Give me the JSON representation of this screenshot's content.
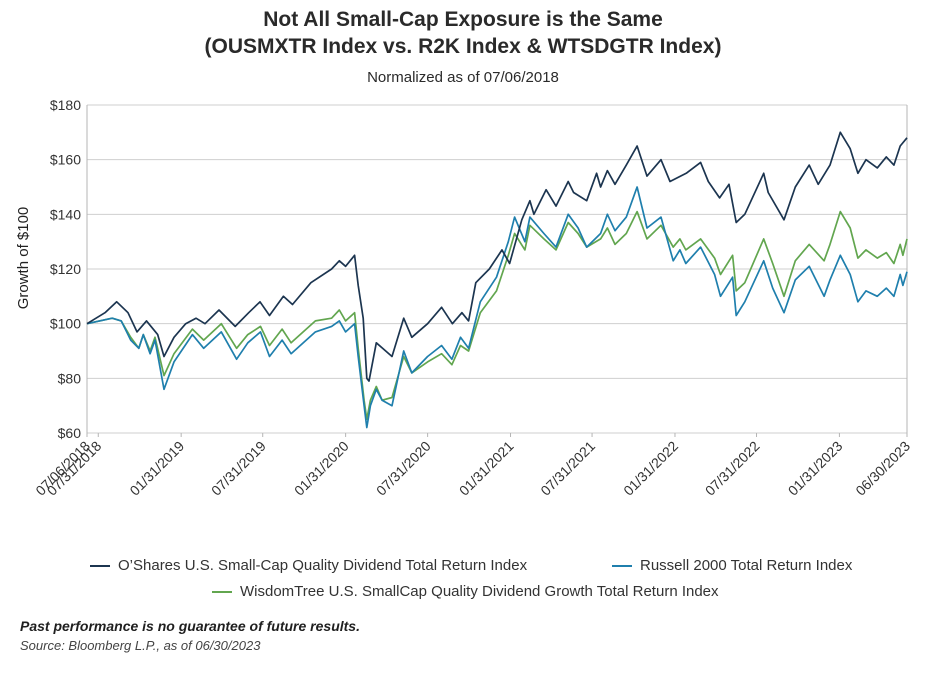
{
  "title_line1": "Not All Small-Cap Exposure is the Same",
  "title_line2": "(OUSMXTR Index vs. R2K Index & WTSDGTR Index)",
  "subtitle": "Normalized as of 07/06/2018",
  "disclaimer": "Past performance is no guarantee of future results.",
  "source": "Source: Bloomberg L.P., as of 06/30/2023",
  "colors": {
    "ousmxtr": "#1c3550",
    "r2k": "#1f7fad",
    "wtsdgtr": "#62a64f",
    "grid": "#cfcfcf",
    "axis": "#b5b5b5"
  },
  "chart_data": {
    "type": "line",
    "xlabel": "",
    "ylabel": "Growth of $100",
    "ylim": [
      60,
      180
    ],
    "xlim": [
      "2018-07-06",
      "2023-06-30"
    ],
    "yticks": [
      "$60",
      "$80",
      "$100",
      "$120",
      "$140",
      "$160",
      "$180"
    ],
    "ytick_values": [
      60,
      80,
      100,
      120,
      140,
      160,
      180
    ],
    "xticks": [
      {
        "date": "2018-07-06",
        "label": "07/06/2018"
      },
      {
        "date": "2018-07-31",
        "label": "07/31/2018"
      },
      {
        "date": "2019-01-31",
        "label": "01/31/2019"
      },
      {
        "date": "2019-07-31",
        "label": "07/31/2019"
      },
      {
        "date": "2020-01-31",
        "label": "01/31/2020"
      },
      {
        "date": "2020-07-31",
        "label": "07/31/2020"
      },
      {
        "date": "2021-01-31",
        "label": "01/31/2021"
      },
      {
        "date": "2021-07-31",
        "label": "07/31/2021"
      },
      {
        "date": "2022-01-31",
        "label": "01/31/2022"
      },
      {
        "date": "2022-07-31",
        "label": "07/31/2022"
      },
      {
        "date": "2023-01-31",
        "label": "01/31/2023"
      },
      {
        "date": "2023-06-30",
        "label": "06/30/2023"
      }
    ],
    "grid": true,
    "legend_position": "bottom",
    "series": [
      {
        "name": "O’Shares U.S. Small-Cap Quality Dividend Total Return Index",
        "color": "#1c3550",
        "points": [
          [
            "2018-07-06",
            100
          ],
          [
            "2018-08-15",
            104
          ],
          [
            "2018-09-10",
            108
          ],
          [
            "2018-10-05",
            104
          ],
          [
            "2018-10-25",
            97
          ],
          [
            "2018-11-15",
            101
          ],
          [
            "2018-12-10",
            96
          ],
          [
            "2018-12-24",
            88
          ],
          [
            "2019-01-15",
            95
          ],
          [
            "2019-02-10",
            100
          ],
          [
            "2019-03-05",
            102
          ],
          [
            "2019-03-25",
            100
          ],
          [
            "2019-04-25",
            105
          ],
          [
            "2019-05-31",
            99
          ],
          [
            "2019-06-30",
            104
          ],
          [
            "2019-07-25",
            108
          ],
          [
            "2019-08-15",
            103
          ],
          [
            "2019-09-15",
            110
          ],
          [
            "2019-10-05",
            107
          ],
          [
            "2019-11-15",
            115
          ],
          [
            "2019-12-31",
            120
          ],
          [
            "2020-01-17",
            123
          ],
          [
            "2020-01-31",
            121
          ],
          [
            "2020-02-20",
            125
          ],
          [
            "2020-02-28",
            114
          ],
          [
            "2020-03-10",
            102
          ],
          [
            "2020-03-18",
            80
          ],
          [
            "2020-03-23",
            79
          ],
          [
            "2020-04-08",
            93
          ],
          [
            "2020-05-13",
            88
          ],
          [
            "2020-06-08",
            102
          ],
          [
            "2020-06-26",
            95
          ],
          [
            "2020-07-31",
            100
          ],
          [
            "2020-08-31",
            106
          ],
          [
            "2020-09-24",
            100
          ],
          [
            "2020-10-15",
            104
          ],
          [
            "2020-10-30",
            101
          ],
          [
            "2020-11-15",
            115
          ],
          [
            "2020-12-15",
            120
          ],
          [
            "2021-01-12",
            127
          ],
          [
            "2021-01-29",
            122
          ],
          [
            "2021-02-25",
            138
          ],
          [
            "2021-03-15",
            145
          ],
          [
            "2021-03-24",
            140
          ],
          [
            "2021-04-20",
            149
          ],
          [
            "2021-05-12",
            143
          ],
          [
            "2021-06-08",
            152
          ],
          [
            "2021-06-20",
            148
          ],
          [
            "2021-07-19",
            145
          ],
          [
            "2021-08-10",
            155
          ],
          [
            "2021-08-19",
            150
          ],
          [
            "2021-09-03",
            156
          ],
          [
            "2021-09-20",
            151
          ],
          [
            "2021-10-15",
            158
          ],
          [
            "2021-11-08",
            165
          ],
          [
            "2021-11-30",
            154
          ],
          [
            "2021-12-31",
            160
          ],
          [
            "2022-01-20",
            152
          ],
          [
            "2022-02-25",
            155
          ],
          [
            "2022-03-29",
            159
          ],
          [
            "2022-04-15",
            152
          ],
          [
            "2022-05-10",
            146
          ],
          [
            "2022-05-31",
            151
          ],
          [
            "2022-06-16",
            137
          ],
          [
            "2022-07-05",
            140
          ],
          [
            "2022-08-16",
            155
          ],
          [
            "2022-08-26",
            148
          ],
          [
            "2022-09-30",
            138
          ],
          [
            "2022-10-25",
            150
          ],
          [
            "2022-11-25",
            158
          ],
          [
            "2022-12-15",
            151
          ],
          [
            "2023-01-10",
            158
          ],
          [
            "2023-02-02",
            170
          ],
          [
            "2023-02-24",
            164
          ],
          [
            "2023-03-13",
            155
          ],
          [
            "2023-03-31",
            160
          ],
          [
            "2023-04-25",
            157
          ],
          [
            "2023-05-15",
            161
          ],
          [
            "2023-06-01",
            158
          ],
          [
            "2023-06-15",
            165
          ],
          [
            "2023-06-30",
            168
          ]
        ]
      },
      {
        "name": "Russell 2000 Total Return Index",
        "color": "#1f7fad",
        "points": [
          [
            "2018-07-06",
            100
          ],
          [
            "2018-08-31",
            102
          ],
          [
            "2018-09-20",
            101
          ],
          [
            "2018-10-11",
            94
          ],
          [
            "2018-10-29",
            91
          ],
          [
            "2018-11-08",
            96
          ],
          [
            "2018-11-23",
            89
          ],
          [
            "2018-12-04",
            94
          ],
          [
            "2018-12-24",
            76
          ],
          [
            "2019-01-15",
            86
          ],
          [
            "2019-02-25",
            96
          ],
          [
            "2019-03-22",
            91
          ],
          [
            "2019-04-30",
            97
          ],
          [
            "2019-06-03",
            87
          ],
          [
            "2019-06-28",
            93
          ],
          [
            "2019-07-26",
            97
          ],
          [
            "2019-08-15",
            88
          ],
          [
            "2019-09-12",
            94
          ],
          [
            "2019-10-02",
            89
          ],
          [
            "2019-11-25",
            97
          ],
          [
            "2019-12-31",
            99
          ],
          [
            "2020-01-17",
            101
          ],
          [
            "2020-01-31",
            97
          ],
          [
            "2020-02-20",
            100
          ],
          [
            "2020-02-28",
            88
          ],
          [
            "2020-03-12",
            70
          ],
          [
            "2020-03-18",
            62
          ],
          [
            "2020-03-26",
            70
          ],
          [
            "2020-04-08",
            76
          ],
          [
            "2020-04-21",
            72
          ],
          [
            "2020-05-13",
            70
          ],
          [
            "2020-06-08",
            90
          ],
          [
            "2020-06-26",
            82
          ],
          [
            "2020-07-31",
            88
          ],
          [
            "2020-08-31",
            92
          ],
          [
            "2020-09-23",
            87
          ],
          [
            "2020-10-12",
            95
          ],
          [
            "2020-10-30",
            91
          ],
          [
            "2020-11-25",
            108
          ],
          [
            "2020-12-31",
            117
          ],
          [
            "2021-01-26",
            130
          ],
          [
            "2021-02-09",
            139
          ],
          [
            "2021-03-04",
            130
          ],
          [
            "2021-03-15",
            139
          ],
          [
            "2021-04-15",
            133
          ],
          [
            "2021-05-12",
            128
          ],
          [
            "2021-06-08",
            140
          ],
          [
            "2021-06-30",
            135
          ],
          [
            "2021-07-19",
            128
          ],
          [
            "2021-08-19",
            133
          ],
          [
            "2021-09-03",
            140
          ],
          [
            "2021-09-20",
            134
          ],
          [
            "2021-10-15",
            139
          ],
          [
            "2021-11-08",
            150
          ],
          [
            "2021-11-30",
            135
          ],
          [
            "2021-12-31",
            139
          ],
          [
            "2022-01-27",
            123
          ],
          [
            "2022-02-11",
            127
          ],
          [
            "2022-02-24",
            122
          ],
          [
            "2022-03-29",
            128
          ],
          [
            "2022-04-29",
            118
          ],
          [
            "2022-05-12",
            110
          ],
          [
            "2022-06-08",
            117
          ],
          [
            "2022-06-16",
            103
          ],
          [
            "2022-07-05",
            108
          ],
          [
            "2022-08-16",
            123
          ],
          [
            "2022-09-05",
            113
          ],
          [
            "2022-09-30",
            104
          ],
          [
            "2022-10-25",
            116
          ],
          [
            "2022-11-25",
            121
          ],
          [
            "2022-12-28",
            110
          ],
          [
            "2023-01-10",
            116
          ],
          [
            "2023-02-02",
            125
          ],
          [
            "2023-02-24",
            118
          ],
          [
            "2023-03-13",
            108
          ],
          [
            "2023-03-31",
            112
          ],
          [
            "2023-04-25",
            110
          ],
          [
            "2023-05-15",
            113
          ],
          [
            "2023-06-01",
            110
          ],
          [
            "2023-06-15",
            118
          ],
          [
            "2023-06-21",
            114
          ],
          [
            "2023-06-30",
            119
          ]
        ]
      },
      {
        "name": "WisdomTree U.S. SmallCap Quality Dividend Growth Total Return Index",
        "color": "#62a64f",
        "points": [
          [
            "2018-07-06",
            100
          ],
          [
            "2018-08-31",
            102
          ],
          [
            "2018-09-20",
            101
          ],
          [
            "2018-10-11",
            95
          ],
          [
            "2018-10-29",
            91
          ],
          [
            "2018-11-08",
            96
          ],
          [
            "2018-11-23",
            90
          ],
          [
            "2018-12-04",
            95
          ],
          [
            "2018-12-24",
            81
          ],
          [
            "2019-01-15",
            89
          ],
          [
            "2019-02-25",
            98
          ],
          [
            "2019-03-22",
            94
          ],
          [
            "2019-04-30",
            100
          ],
          [
            "2019-06-03",
            91
          ],
          [
            "2019-06-28",
            96
          ],
          [
            "2019-07-26",
            99
          ],
          [
            "2019-08-15",
            92
          ],
          [
            "2019-09-12",
            98
          ],
          [
            "2019-10-02",
            93
          ],
          [
            "2019-11-25",
            101
          ],
          [
            "2019-12-31",
            102
          ],
          [
            "2020-01-17",
            105
          ],
          [
            "2020-01-31",
            101
          ],
          [
            "2020-02-20",
            104
          ],
          [
            "2020-02-28",
            91
          ],
          [
            "2020-03-12",
            72
          ],
          [
            "2020-03-18",
            65
          ],
          [
            "2020-03-26",
            72
          ],
          [
            "2020-04-08",
            77
          ],
          [
            "2020-04-21",
            72
          ],
          [
            "2020-05-13",
            73
          ],
          [
            "2020-06-08",
            88
          ],
          [
            "2020-06-26",
            82
          ],
          [
            "2020-07-31",
            86
          ],
          [
            "2020-08-31",
            89
          ],
          [
            "2020-09-23",
            85
          ],
          [
            "2020-10-12",
            92
          ],
          [
            "2020-10-30",
            90
          ],
          [
            "2020-11-25",
            104
          ],
          [
            "2020-12-31",
            112
          ],
          [
            "2021-01-26",
            125
          ],
          [
            "2021-02-09",
            133
          ],
          [
            "2021-03-04",
            127
          ],
          [
            "2021-03-15",
            136
          ],
          [
            "2021-04-15",
            131
          ],
          [
            "2021-05-12",
            127
          ],
          [
            "2021-06-08",
            137
          ],
          [
            "2021-06-30",
            133
          ],
          [
            "2021-07-19",
            128
          ],
          [
            "2021-08-19",
            131
          ],
          [
            "2021-09-03",
            135
          ],
          [
            "2021-09-20",
            129
          ],
          [
            "2021-10-15",
            133
          ],
          [
            "2021-11-08",
            141
          ],
          [
            "2021-11-30",
            131
          ],
          [
            "2021-12-31",
            136
          ],
          [
            "2022-01-27",
            128
          ],
          [
            "2022-02-11",
            131
          ],
          [
            "2022-02-24",
            127
          ],
          [
            "2022-03-29",
            131
          ],
          [
            "2022-04-29",
            124
          ],
          [
            "2022-05-12",
            118
          ],
          [
            "2022-06-08",
            125
          ],
          [
            "2022-06-16",
            112
          ],
          [
            "2022-07-05",
            115
          ],
          [
            "2022-08-16",
            131
          ],
          [
            "2022-09-05",
            122
          ],
          [
            "2022-09-30",
            110
          ],
          [
            "2022-10-25",
            123
          ],
          [
            "2022-11-25",
            129
          ],
          [
            "2022-12-28",
            123
          ],
          [
            "2023-01-10",
            129
          ],
          [
            "2023-02-02",
            141
          ],
          [
            "2023-02-24",
            135
          ],
          [
            "2023-03-13",
            124
          ],
          [
            "2023-03-31",
            127
          ],
          [
            "2023-04-25",
            124
          ],
          [
            "2023-05-15",
            126
          ],
          [
            "2023-06-01",
            122
          ],
          [
            "2023-06-15",
            129
          ],
          [
            "2023-06-21",
            125
          ],
          [
            "2023-06-30",
            131
          ]
        ]
      }
    ]
  }
}
